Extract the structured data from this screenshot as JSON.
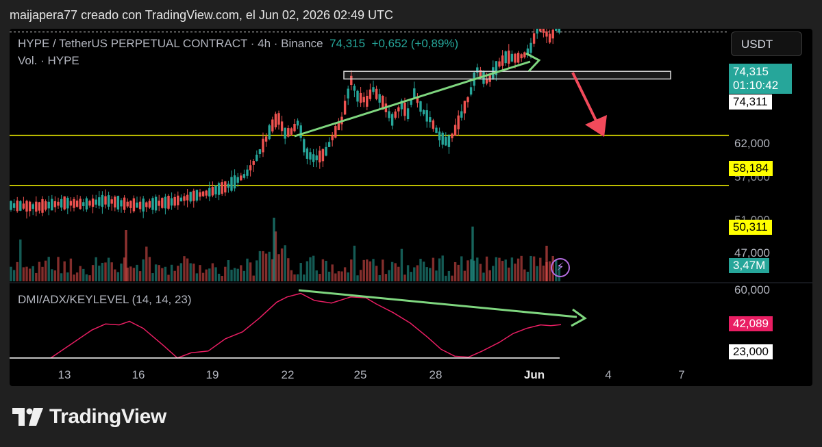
{
  "header": {
    "attribution": "maijapera77 creado con TradingView.com, el Jun 02, 2026 02:49 UTC"
  },
  "legend": {
    "symbol": "HYPE / TetherUS PERPETUAL CONTRACT · 4h · Binance",
    "last": "74,315",
    "change": "+0,652 (+0,89%)",
    "volume": "Vol. · HYPE",
    "indicator": "DMI/ADX/KEYLEVEL (14, 14, 23)"
  },
  "currency": "USDT",
  "tags": {
    "price": "74,315",
    "countdown": "01:10:42",
    "ref": "74,311",
    "level_high": "58,184",
    "level_low": "50,311",
    "volume": "3,47M",
    "adx": "42,089",
    "key": "23,000"
  },
  "ticks": {
    "p62": "62,000",
    "p57": "57,000",
    "p51": "51,000",
    "p47": "47,000",
    "i60": "60,000"
  },
  "brand": {
    "name": "TradingView"
  },
  "colors": {
    "bg": "#000000",
    "up": "#26a69a",
    "down": "#ef5350",
    "key_level": "#ffff00",
    "adx": "#e91e63",
    "arrow_green": "#7fd67f",
    "arrow_red": "#f24a5b",
    "zone": "#d8d8d8",
    "price_tag": "#26a69a"
  },
  "chart_data": {
    "type": "candlestick",
    "interval": "4h",
    "x_ticks": [
      "13",
      "16",
      "19",
      "22",
      "25",
      "28",
      "Jun",
      "4",
      "7"
    ],
    "y_ticks": [
      "62,000",
      "57,000",
      "51,000",
      "47,000"
    ],
    "horizontal_levels": [
      58.184,
      50.311
    ],
    "zone": [
      67.0,
      68.2
    ],
    "price_path": [
      [
        0,
        47.2
      ],
      [
        40,
        47.0
      ],
      [
        80,
        47.6
      ],
      [
        110,
        47.4
      ],
      [
        140,
        48.0
      ],
      [
        165,
        47.5
      ],
      [
        190,
        47.2
      ],
      [
        215,
        47.5
      ],
      [
        240,
        47.8
      ],
      [
        265,
        48.6
      ],
      [
        290,
        49.2
      ],
      [
        320,
        50.3
      ],
      [
        345,
        52.0
      ],
      [
        360,
        54.5
      ],
      [
        372,
        57.0
      ],
      [
        385,
        60.0
      ],
      [
        392,
        61.0
      ],
      [
        402,
        58.5
      ],
      [
        412,
        58.8
      ],
      [
        422,
        60.3
      ],
      [
        432,
        55.5
      ],
      [
        445,
        54.5
      ],
      [
        460,
        55.2
      ],
      [
        472,
        58.0
      ],
      [
        485,
        60.5
      ],
      [
        493,
        64.0
      ],
      [
        498,
        67.0
      ],
      [
        508,
        64.3
      ],
      [
        522,
        63.5
      ],
      [
        530,
        65.5
      ],
      [
        548,
        62.8
      ],
      [
        558,
        60.5
      ],
      [
        572,
        63.0
      ],
      [
        582,
        61.5
      ],
      [
        590,
        65.0
      ],
      [
        603,
        62.0
      ],
      [
        615,
        60.5
      ],
      [
        628,
        58.0
      ],
      [
        640,
        57.0
      ],
      [
        650,
        58.8
      ],
      [
        660,
        61.5
      ],
      [
        672,
        64.5
      ],
      [
        682,
        68.5
      ],
      [
        698,
        66.5
      ],
      [
        712,
        69.0
      ],
      [
        725,
        70.5
      ],
      [
        740,
        70.2
      ],
      [
        752,
        70.8
      ],
      [
        762,
        72.0
      ],
      [
        770,
        75.0
      ],
      [
        780,
        74.6
      ],
      [
        790,
        73.2
      ],
      [
        800,
        75.8
      ],
      [
        806,
        74.3
      ]
    ],
    "volume": [],
    "adx": [
      [
        60,
        23.0
      ],
      [
        90,
        31.0
      ],
      [
        120,
        39.0
      ],
      [
        140,
        42.5
      ],
      [
        160,
        42.0
      ],
      [
        175,
        44.0
      ],
      [
        195,
        40.0
      ],
      [
        225,
        30.0
      ],
      [
        245,
        23.0
      ],
      [
        265,
        26.0
      ],
      [
        290,
        27.0
      ],
      [
        315,
        34.0
      ],
      [
        340,
        38.0
      ],
      [
        365,
        46.0
      ],
      [
        390,
        55.0
      ],
      [
        405,
        58.0
      ],
      [
        425,
        60.0
      ],
      [
        445,
        56.0
      ],
      [
        470,
        54.5
      ],
      [
        498,
        58.0
      ],
      [
        520,
        57.5
      ],
      [
        535,
        54.0
      ],
      [
        560,
        49.0
      ],
      [
        585,
        43.0
      ],
      [
        610,
        35.0
      ],
      [
        630,
        28.0
      ],
      [
        650,
        24.0
      ],
      [
        670,
        23.5
      ],
      [
        690,
        27.0
      ],
      [
        715,
        32.0
      ],
      [
        735,
        37.0
      ],
      [
        755,
        40.0
      ],
      [
        775,
        42.0
      ],
      [
        790,
        41.5
      ],
      [
        805,
        42.1
      ]
    ],
    "key_level": 23.0,
    "annotations": [
      "green arrow rising along price highs",
      "red arrow from last candle down to the zone",
      "green arrow falling along ADX highs"
    ]
  }
}
